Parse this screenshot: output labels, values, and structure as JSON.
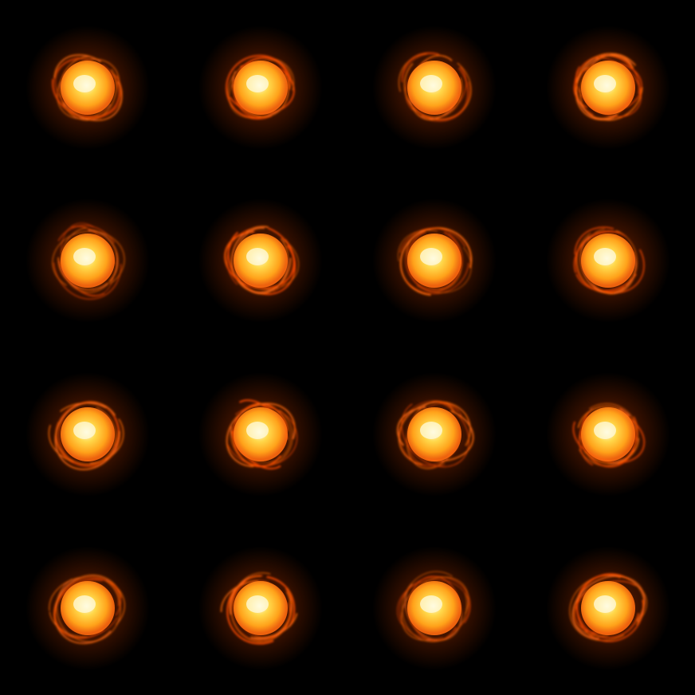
{
  "sheet": {
    "background": "#000000",
    "rows": 4,
    "columns": 4,
    "frame_count": 16,
    "glow_colors": {
      "core": "#fffbe0",
      "inner": "#ffd84a",
      "mid": "#ffa21a",
      "ring": "#ff6a10",
      "outer": "#ff4a00"
    },
    "frames": [
      {
        "icon": "glowing-energy-orb-icon"
      },
      {
        "icon": "glowing-energy-orb-icon"
      },
      {
        "icon": "glowing-energy-orb-icon"
      },
      {
        "icon": "glowing-energy-orb-icon"
      },
      {
        "icon": "glowing-energy-orb-icon"
      },
      {
        "icon": "glowing-energy-orb-icon"
      },
      {
        "icon": "glowing-energy-orb-icon"
      },
      {
        "icon": "glowing-energy-orb-icon"
      },
      {
        "icon": "glowing-energy-orb-icon"
      },
      {
        "icon": "glowing-energy-orb-icon"
      },
      {
        "icon": "glowing-energy-orb-icon"
      },
      {
        "icon": "glowing-energy-orb-icon"
      },
      {
        "icon": "glowing-energy-orb-icon"
      },
      {
        "icon": "glowing-energy-orb-icon"
      },
      {
        "icon": "glowing-energy-orb-icon"
      },
      {
        "icon": "glowing-energy-orb-icon"
      }
    ]
  }
}
